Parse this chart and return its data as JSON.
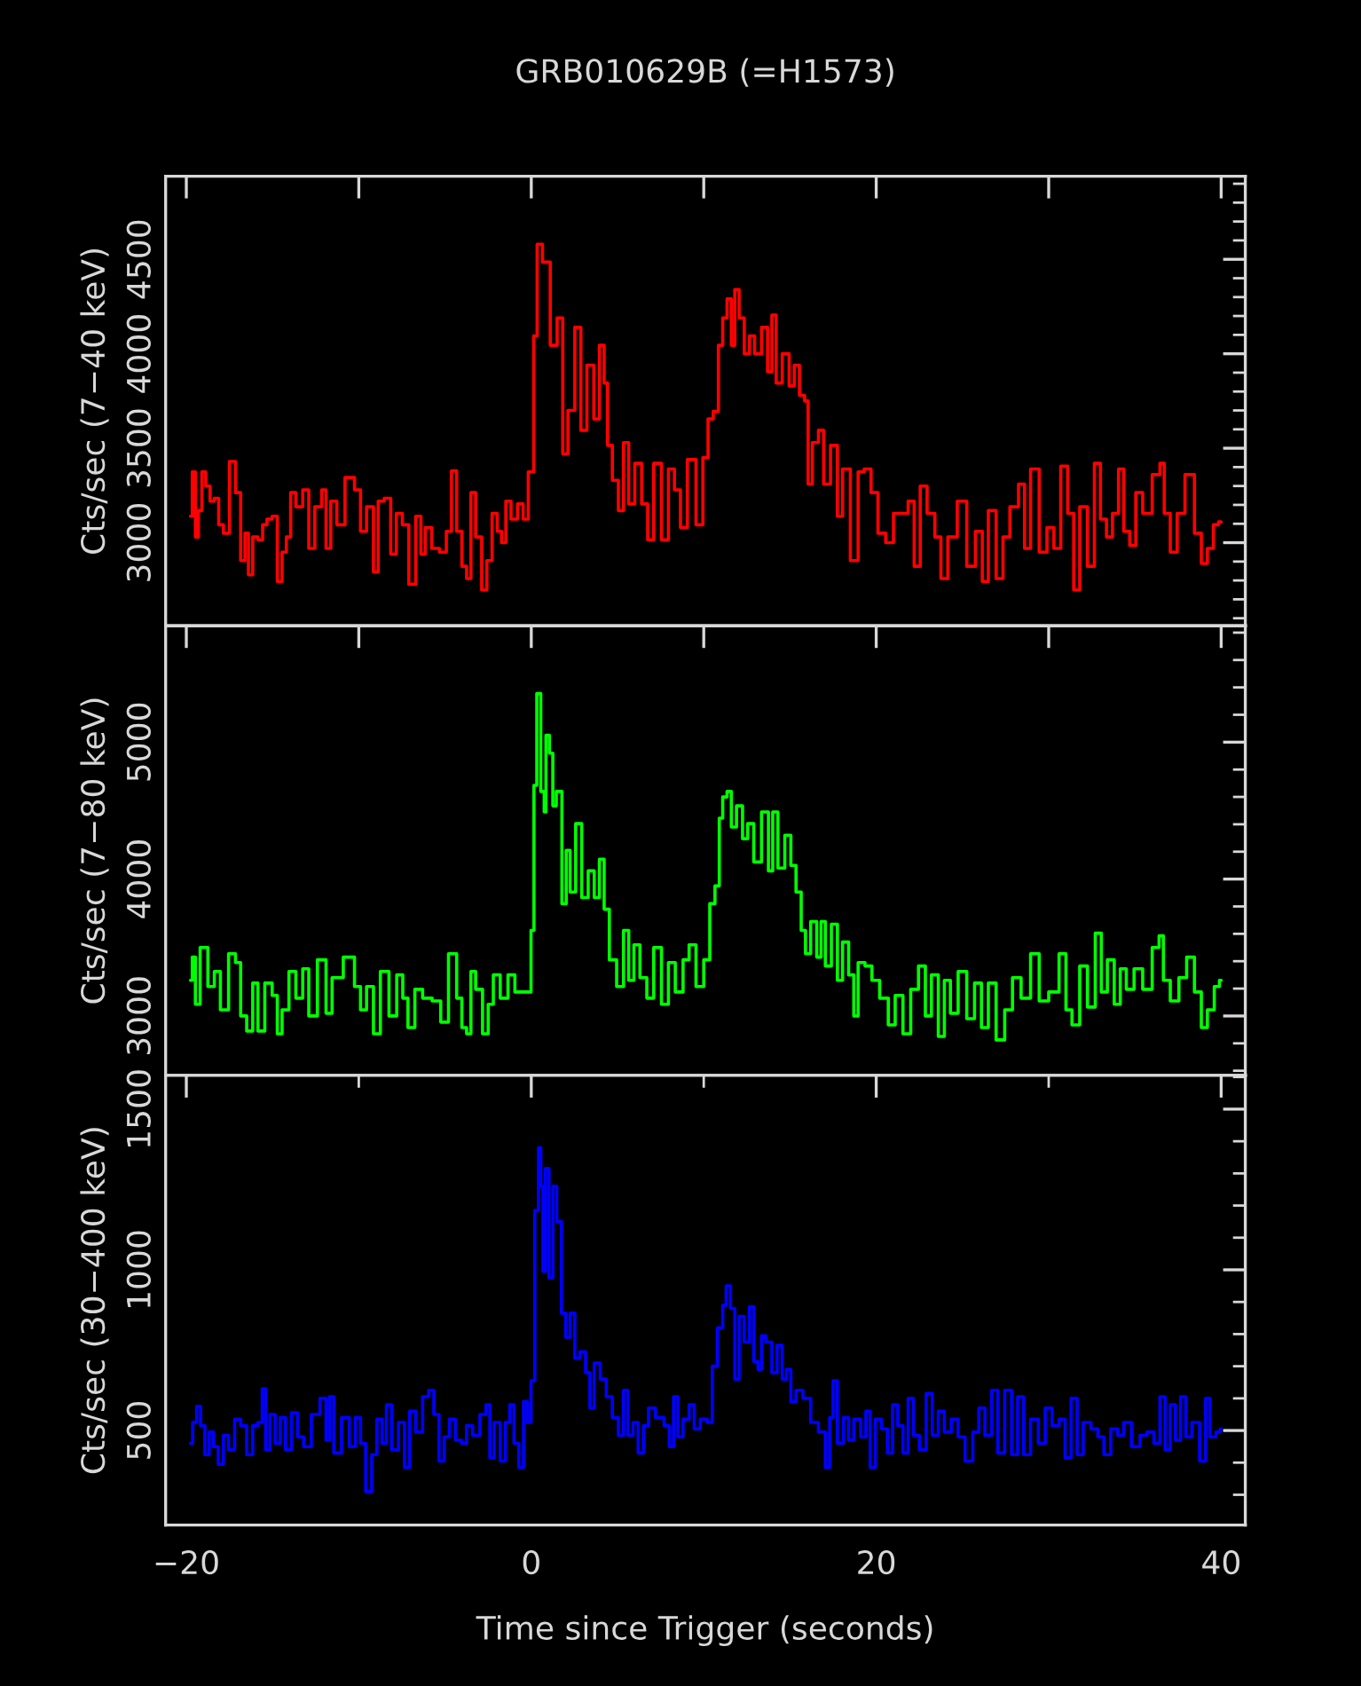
{
  "chart_data": [
    {
      "type": "step",
      "title": "GRB010629B (=H1573)",
      "ylabel": "Cts/sec (7−40 keV)",
      "xlim": [
        -21.2,
        41.4
      ],
      "ylim": [
        2560,
        4940
      ],
      "tick_labels": "y",
      "xticks": [
        -20,
        -10,
        0,
        10,
        20,
        30,
        40
      ],
      "yticks": [
        {
          "value": 2600,
          "label": null
        },
        {
          "value": 2700,
          "label": null
        },
        {
          "value": 2800,
          "label": null
        },
        {
          "value": 2900,
          "label": null
        },
        3000,
        {
          "value": 3100,
          "label": null
        },
        {
          "value": 3200,
          "label": null
        },
        {
          "value": 3300,
          "label": null
        },
        {
          "value": 3400,
          "label": null
        },
        3500,
        {
          "value": 3600,
          "label": null
        },
        {
          "value": 3700,
          "label": null
        },
        {
          "value": 3800,
          "label": null
        },
        {
          "value": 3900,
          "label": null
        },
        4000,
        {
          "value": 4100,
          "label": null
        },
        {
          "value": 4200,
          "label": null
        },
        {
          "value": 4300,
          "label": null
        },
        {
          "value": 4400,
          "label": null
        },
        4500,
        {
          "value": 4600,
          "label": null
        },
        {
          "value": 4700,
          "label": null
        },
        {
          "value": 4800,
          "label": null
        },
        {
          "value": 4900,
          "label": null
        }
      ],
      "series": [
        {
          "color": "#ff0000",
          "x": [
            -19.76,
            -19.55,
            -19.4,
            -19.2,
            -19.0,
            -18.75,
            -18.5,
            -18.25,
            -18.0,
            -17.7,
            -17.3,
            -17.0,
            -16.7,
            -16.5,
            -16.3,
            -16.0,
            -15.7,
            -15.45,
            -15.2,
            -14.85,
            -14.6,
            -14.3,
            -14.1,
            -13.8,
            -13.5,
            -13.0,
            -12.8,
            -12.3,
            -12.0,
            -11.8,
            -11.45,
            -11.1,
            -10.5,
            -10.0,
            -9.8,
            -9.3,
            -9.0,
            -8.75,
            -8.3,
            -8.0,
            -7.65,
            -7.3,
            -6.9,
            -6.5,
            -6.3,
            -6.0,
            -5.55,
            -5.1,
            -4.75,
            -4.5,
            -4.15,
            -3.9,
            -3.6,
            -3.4,
            -3.05,
            -2.7,
            -2.45,
            -2.1,
            -1.85,
            -1.6,
            -1.35,
            -1.0,
            -0.6,
            -0.35,
            0.0,
            0.28,
            0.4,
            0.9,
            1.3,
            1.7,
            1.95,
            2.3,
            2.75,
            3.0,
            3.45,
            3.8,
            4.1,
            4.35,
            4.5,
            4.9,
            5.2,
            5.5,
            5.8,
            6.2,
            6.6,
            6.9,
            7.3,
            7.8,
            8.1,
            8.5,
            8.8,
            9.3,
            9.8,
            10.1,
            10.4,
            10.7,
            11.0,
            11.2,
            11.5,
            11.7,
            11.9,
            12.2,
            12.5,
            12.8,
            13.1,
            13.6,
            13.8,
            14.1,
            14.3,
            14.8,
            15.1,
            15.4,
            15.7,
            16.0,
            16.1,
            16.5,
            16.8,
            17.1,
            17.6,
            17.9,
            18.2,
            18.8,
            19.1,
            19.5,
            19.9,
            20.3,
            20.8,
            21.2,
            21.7,
            22.0,
            22.4,
            22.7,
            23.2,
            23.6,
            23.9,
            24.4,
            25.0,
            25.5,
            26.0,
            26.3,
            26.7,
            27.2,
            27.5,
            28.0,
            28.5,
            28.7,
            29.2,
            29.7,
            30.1,
            30.5,
            30.9,
            31.3,
            31.6,
            32.0,
            32.5,
            32.8,
            33.2,
            33.5,
            33.9,
            34.2,
            34.5,
            34.9,
            35.2,
            35.7,
            36.3,
            36.6,
            36.8,
            37.3,
            37.6,
            38.2,
            38.7,
            39.0,
            39.4,
            39.7,
            40.0
          ],
          "values": [
            3140,
            3375,
            3030,
            3170,
            3375,
            3300,
            3220,
            3235,
            3095,
            3050,
            3430,
            3265,
            2905,
            3050,
            2830,
            3030,
            3015,
            3095,
            3125,
            3140,
            2795,
            2950,
            3030,
            3265,
            3190,
            3280,
            2970,
            3190,
            3280,
            2970,
            3220,
            3095,
            3345,
            3280,
            3060,
            3190,
            2845,
            3220,
            3235,
            2940,
            3155,
            3095,
            2780,
            3140,
            2940,
            3080,
            2970,
            2950,
            3060,
            3380,
            3060,
            2875,
            2810,
            3265,
            3030,
            2750,
            2905,
            3155,
            3060,
            3000,
            3220,
            3125,
            3205,
            3125,
            3375,
            4095,
            4580,
            4485,
            4045,
            4190,
            3470,
            3700,
            4140,
            3595,
            3940,
            3655,
            4045,
            3845,
            3515,
            3330,
            3170,
            3530,
            3205,
            3420,
            3205,
            3015,
            3420,
            3015,
            3390,
            3280,
            3080,
            3440,
            3095,
            3450,
            3655,
            3695,
            4045,
            4190,
            4290,
            4045,
            4340,
            4190,
            4000,
            4095,
            4000,
            4140,
            3905,
            4205,
            3845,
            4000,
            3830,
            3940,
            3780,
            3750,
            3310,
            3530,
            3595,
            3310,
            3515,
            3140,
            3390,
            2905,
            3375,
            3390,
            3265,
            3050,
            3000,
            3155,
            3155,
            3220,
            2875,
            3300,
            3155,
            3030,
            2810,
            3030,
            3220,
            2875,
            3060,
            2795,
            3170,
            2810,
            3030,
            3190,
            3310,
            2970,
            3390,
            2950,
            3080,
            2970,
            3405,
            3155,
            2750,
            3190,
            2875,
            3420,
            3125,
            3030,
            3155,
            3390,
            3060,
            2985,
            3265,
            3155,
            3360,
            3420,
            3155,
            2950,
            3155,
            3360,
            3050,
            2890,
            2970,
            3095,
            3110
          ]
        }
      ]
    },
    {
      "type": "step",
      "ylabel": "Cts/sec (7−80 keV)",
      "xlim": [
        -21.2,
        41.4
      ],
      "ylim": [
        2566,
        5850
      ],
      "tick_labels": "y",
      "xticks": [
        -20,
        -10,
        0,
        10,
        20,
        30,
        40
      ],
      "yticks": [
        {
          "value": 2600,
          "label": null
        },
        {
          "value": 2800,
          "label": null
        },
        3000,
        {
          "value": 3200,
          "label": null
        },
        {
          "value": 3400,
          "label": null
        },
        {
          "value": 3600,
          "label": null
        },
        {
          "value": 3800,
          "label": null
        },
        4000,
        {
          "value": 4200,
          "label": null
        },
        {
          "value": 4400,
          "label": null
        },
        {
          "value": 4600,
          "label": null
        },
        {
          "value": 4800,
          "label": null
        },
        5000,
        {
          "value": 5200,
          "label": null
        },
        {
          "value": 5400,
          "label": null
        },
        {
          "value": 5600,
          "label": null
        },
        {
          "value": 5800,
          "label": null
        }
      ],
      "series": [
        {
          "color": "#00ff00",
          "x": [
            -19.76,
            -19.55,
            -19.4,
            -19.0,
            -18.5,
            -18.25,
            -17.8,
            -17.3,
            -17.0,
            -16.7,
            -16.3,
            -16.0,
            -15.7,
            -15.2,
            -14.85,
            -14.6,
            -14.3,
            -13.8,
            -13.5,
            -13.0,
            -12.8,
            -12.0,
            -11.8,
            -11.3,
            -10.5,
            -10.0,
            -9.8,
            -9.3,
            -9.0,
            -8.5,
            -8.0,
            -7.6,
            -7.3,
            -7.0,
            -6.5,
            -6.1,
            -5.4,
            -5.1,
            -4.5,
            -4.15,
            -3.9,
            -3.6,
            -3.4,
            -3.05,
            -2.6,
            -2.4,
            -2.0,
            -1.6,
            -1.1,
            -0.8,
            -0.4,
            -0.1,
            0.07,
            0.24,
            0.4,
            0.7,
            0.8,
            0.9,
            1.2,
            1.3,
            1.6,
            1.95,
            2.1,
            2.4,
            2.75,
            3.1,
            3.5,
            3.8,
            4.1,
            4.35,
            4.7,
            5.2,
            5.5,
            5.8,
            6.1,
            6.5,
            6.9,
            7.3,
            7.8,
            8.1,
            8.6,
            9.0,
            9.3,
            9.8,
            10.2,
            10.5,
            10.8,
            11.0,
            11.2,
            11.5,
            11.7,
            12.1,
            12.4,
            12.7,
            13.1,
            13.6,
            13.9,
            14.1,
            14.5,
            14.9,
            15.2,
            15.5,
            15.8,
            16.0,
            16.4,
            16.7,
            16.9,
            17.2,
            17.6,
            17.9,
            18.2,
            18.6,
            18.8,
            19.1,
            19.6,
            19.9,
            20.5,
            20.9,
            21.3,
            21.8,
            22.2,
            22.7,
            23.0,
            23.4,
            23.8,
            24.1,
            24.5,
            25.0,
            25.5,
            25.9,
            26.3,
            26.7,
            27.2,
            27.7,
            28.1,
            28.7,
            29.2,
            29.7,
            30.3,
            30.9,
            31.1,
            31.6,
            32.0,
            32.5,
            32.9,
            33.2,
            33.6,
            34.0,
            34.3,
            34.7,
            35.2,
            35.7,
            36.3,
            36.5,
            36.8,
            37.3,
            37.8,
            38.2,
            38.7,
            39.0,
            39.4,
            39.8,
            40.0
          ],
          "values": [
            3260,
            3430,
            3085,
            3500,
            3215,
            3325,
            3045,
            3455,
            3390,
            3000,
            2890,
            3240,
            2890,
            3240,
            3150,
            2870,
            3045,
            3325,
            3130,
            3345,
            3000,
            3410,
            3020,
            3280,
            3430,
            3215,
            3045,
            3215,
            2870,
            3325,
            3000,
            3300,
            3130,
            2915,
            3195,
            3130,
            3110,
            2955,
            3455,
            3130,
            2915,
            2870,
            3325,
            3195,
            2870,
            3085,
            3300,
            3130,
            3300,
            3175,
            3175,
            3175,
            3625,
            4685,
            5355,
            4640,
            4490,
            5050,
            4920,
            4535,
            4640,
            3820,
            4210,
            3905,
            4405,
            3865,
            4060,
            3865,
            4145,
            3780,
            3410,
            3215,
            3625,
            3260,
            3520,
            3280,
            3130,
            3500,
            3085,
            3390,
            3175,
            3410,
            3520,
            3215,
            3410,
            3820,
            3950,
            4445,
            4600,
            4640,
            4380,
            4535,
            4295,
            4405,
            4125,
            4490,
            4060,
            4490,
            4080,
            4320,
            4100,
            3905,
            3625,
            3455,
            3690,
            3430,
            3690,
            3365,
            3670,
            3260,
            3540,
            3300,
            3000,
            3390,
            3365,
            3260,
            3130,
            2935,
            3150,
            2870,
            3195,
            3365,
            3000,
            3300,
            2850,
            3260,
            3020,
            3325,
            2980,
            3240,
            2915,
            3240,
            2825,
            3045,
            3280,
            3130,
            3455,
            3110,
            3175,
            3455,
            3045,
            2935,
            3365,
            3065,
            3605,
            3175,
            3410,
            3085,
            3345,
            3195,
            3345,
            3195,
            3500,
            3585,
            3260,
            3110,
            3280,
            3430,
            3175,
            2915,
            3045,
            3215,
            3260
          ]
        }
      ]
    },
    {
      "type": "step",
      "ylabel": "Cts/sec (30−400 keV)",
      "xlabel": "Time since Trigger (seconds)",
      "xlim": [
        -21.2,
        41.4
      ],
      "ylim": [
        206,
        1605
      ],
      "xticks": [
        {
          "value": -20,
          "label": "−20"
        },
        {
          "value": -10,
          "label": null
        },
        0,
        {
          "value": 10,
          "label": null
        },
        20,
        {
          "value": 30,
          "label": null
        },
        40
      ],
      "yticks": [
        {
          "value": 300,
          "label": null
        },
        {
          "value": 400,
          "label": null
        },
        500,
        {
          "value": 600,
          "label": null
        },
        {
          "value": 700,
          "label": null
        },
        {
          "value": 800,
          "label": null
        },
        {
          "value": 900,
          "label": null
        },
        1000,
        {
          "value": 1100,
          "label": null
        },
        {
          "value": 1200,
          "label": null
        },
        {
          "value": 1300,
          "label": null
        },
        {
          "value": 1400,
          "label": null
        },
        1500,
        {
          "value": 1600,
          "label": null
        }
      ],
      "series": [
        {
          "color": "#0000ff",
          "x": [
            -19.76,
            -19.5,
            -19.3,
            -19.05,
            -18.8,
            -18.55,
            -18.3,
            -18.0,
            -17.7,
            -17.4,
            -17.0,
            -16.7,
            -16.3,
            -16.0,
            -15.7,
            -15.5,
            -15.3,
            -15.0,
            -14.7,
            -14.4,
            -14.1,
            -13.7,
            -13.4,
            -13.0,
            -12.5,
            -12.0,
            -11.8,
            -11.6,
            -11.3,
            -10.7,
            -10.4,
            -10.0,
            -9.8,
            -9.4,
            -9.1,
            -8.8,
            -8.5,
            -8.3,
            -7.9,
            -7.5,
            -7.2,
            -6.9,
            -6.5,
            -6.1,
            -5.8,
            -5.5,
            -5.2,
            -4.9,
            -4.6,
            -4.2,
            -3.9,
            -3.6,
            -3.2,
            -2.75,
            -2.5,
            -2.3,
            -2.0,
            -1.6,
            -1.4,
            -1.1,
            -0.9,
            -0.55,
            -0.35,
            -0.1,
            0.07,
            0.34,
            0.5,
            0.6,
            0.75,
            0.9,
            1.15,
            1.35,
            1.6,
            1.9,
            2.1,
            2.4,
            2.65,
            3.0,
            3.3,
            3.5,
            3.8,
            4.2,
            4.5,
            4.9,
            5.2,
            5.5,
            5.7,
            6.1,
            6.3,
            6.7,
            6.9,
            7.5,
            7.9,
            8.1,
            8.4,
            8.6,
            9.0,
            9.3,
            9.6,
            10.0,
            10.4,
            10.6,
            11.0,
            11.2,
            11.4,
            11.7,
            11.9,
            12.2,
            12.5,
            12.8,
            13.0,
            13.3,
            13.4,
            13.8,
            14.1,
            14.4,
            14.7,
            14.9,
            15.2,
            15.5,
            16.0,
            16.4,
            16.9,
            17.2,
            17.4,
            17.6,
            17.9,
            18.3,
            18.5,
            18.9,
            19.3,
            19.5,
            19.8,
            20.1,
            20.5,
            20.8,
            21.1,
            21.4,
            21.7,
            22.0,
            22.3,
            22.7,
            23.1,
            23.4,
            23.8,
            24.1,
            24.6,
            24.9,
            25.4,
            25.8,
            26.1,
            26.5,
            26.9,
            27.2,
            27.7,
            28.0,
            28.4,
            28.7,
            29.2,
            29.6,
            30.0,
            30.4,
            30.8,
            31.1,
            31.5,
            31.8,
            32.2,
            32.7,
            33.0,
            33.4,
            33.8,
            34.2,
            34.5,
            35.1,
            35.5,
            35.9,
            36.3,
            36.6,
            36.9,
            37.2,
            37.5,
            37.8,
            38.1,
            38.5,
            39.0,
            39.2,
            39.5,
            39.9,
            40.0
          ],
          "values": [
            460,
            525,
            575,
            515,
            425,
            495,
            450,
            395,
            485,
            440,
            535,
            515,
            425,
            515,
            525,
            630,
            440,
            550,
            460,
            540,
            440,
            555,
            480,
            450,
            550,
            600,
            470,
            605,
            430,
            540,
            450,
            540,
            460,
            310,
            425,
            535,
            460,
            580,
            440,
            525,
            385,
            560,
            495,
            605,
            625,
            550,
            405,
            480,
            535,
            470,
            460,
            515,
            485,
            550,
            580,
            415,
            525,
            405,
            525,
            580,
            460,
            385,
            590,
            525,
            655,
            1185,
            1380,
            1260,
            995,
            1315,
            975,
            1260,
            1150,
            865,
            790,
            865,
            725,
            745,
            680,
            570,
            710,
            660,
            605,
            540,
            485,
            625,
            485,
            525,
            430,
            515,
            570,
            540,
            515,
            450,
            605,
            480,
            535,
            580,
            505,
            535,
            525,
            700,
            820,
            890,
            950,
            880,
            660,
            855,
            775,
            885,
            715,
            690,
            795,
            775,
            680,
            765,
            660,
            690,
            590,
            625,
            600,
            525,
            495,
            385,
            540,
            655,
            460,
            540,
            470,
            535,
            480,
            560,
            385,
            535,
            505,
            430,
            580,
            515,
            430,
            600,
            485,
            440,
            615,
            485,
            560,
            495,
            535,
            480,
            405,
            495,
            570,
            485,
            625,
            430,
            625,
            425,
            605,
            425,
            535,
            460,
            570,
            515,
            535,
            415,
            600,
            425,
            525,
            505,
            480,
            425,
            505,
            485,
            525,
            450,
            485,
            495,
            460,
            605,
            440,
            580,
            470,
            605,
            480,
            525,
            405,
            600,
            480,
            495,
            505
          ]
        }
      ]
    }
  ]
}
